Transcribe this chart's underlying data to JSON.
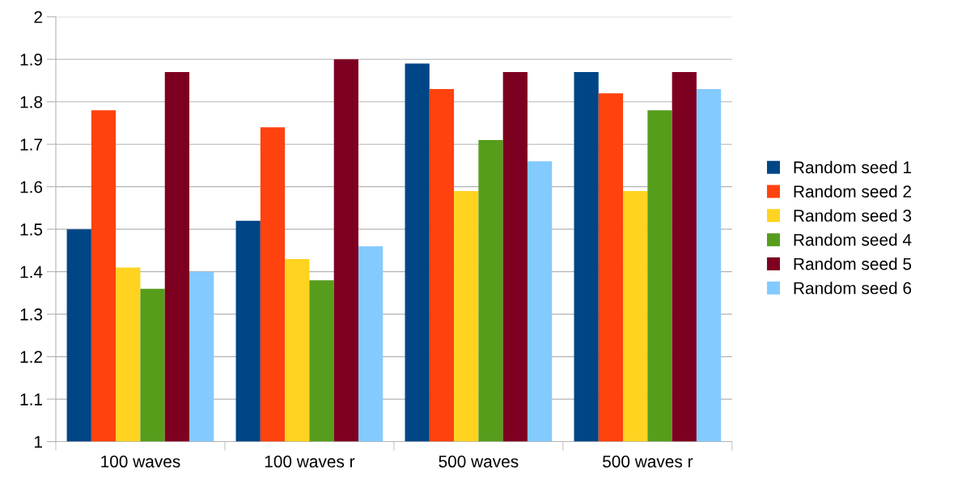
{
  "chart_data": {
    "type": "bar",
    "categories": [
      "100 waves",
      "100 waves r",
      "500 waves",
      "500 waves r"
    ],
    "series": [
      {
        "name": "Random seed 1",
        "color": "#004586",
        "values": [
          1.5,
          1.52,
          1.89,
          1.87
        ]
      },
      {
        "name": "Random seed 2",
        "color": "#ff420e",
        "values": [
          1.78,
          1.74,
          1.83,
          1.82
        ]
      },
      {
        "name": "Random seed 3",
        "color": "#ffd320",
        "values": [
          1.41,
          1.43,
          1.59,
          1.59
        ]
      },
      {
        "name": "Random seed 4",
        "color": "#579d1c",
        "values": [
          1.36,
          1.38,
          1.71,
          1.78
        ]
      },
      {
        "name": "Random seed 5",
        "color": "#7e0021",
        "values": [
          1.87,
          1.9,
          1.87,
          1.87
        ]
      },
      {
        "name": "Random seed 6",
        "color": "#83caff",
        "values": [
          1.4,
          1.46,
          1.66,
          1.83
        ]
      }
    ],
    "ylim": [
      1,
      2
    ],
    "yticks": [
      1,
      1.1,
      1.2,
      1.3,
      1.4,
      1.5,
      1.6,
      1.7,
      1.8,
      1.9,
      2
    ],
    "grid": "y",
    "legend": "right"
  }
}
